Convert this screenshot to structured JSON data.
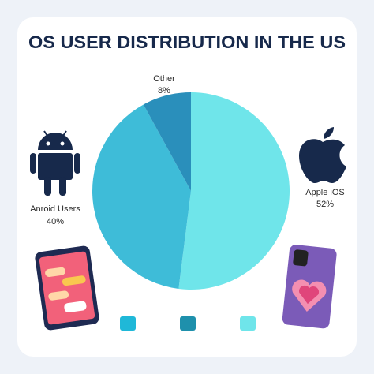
{
  "chart_data": {
    "type": "pie",
    "title": "OS USER DISTRIBUTION IN THE US",
    "categories": [
      "Apple iOS",
      "Anroid Users",
      "Other"
    ],
    "values": [
      52,
      40,
      8
    ],
    "value_labels": [
      "52%",
      "40%",
      "8%"
    ],
    "colors": [
      "#6fe5ea",
      "#3ebcd8",
      "#2a8fbb"
    ],
    "legend_colors": [
      "#1fb8d8",
      "#1e90ac",
      "#6fe5ea"
    ]
  }
}
